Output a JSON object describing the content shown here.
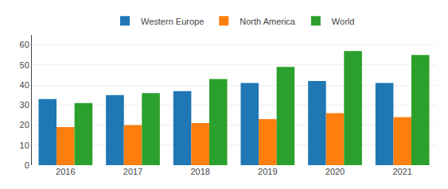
{
  "chart_data": {
    "type": "bar",
    "categories": [
      "2016",
      "2017",
      "2018",
      "2019",
      "2020",
      "2021"
    ],
    "series": [
      {
        "name": "Western Europe",
        "values": [
          33,
          35,
          37,
          41,
          42,
          41
        ]
      },
      {
        "name": "North America",
        "values": [
          19,
          20,
          21,
          23,
          26,
          24
        ]
      },
      {
        "name": "World",
        "values": [
          31,
          36,
          43,
          49,
          57,
          55
        ]
      }
    ],
    "ylim": [
      0,
      65
    ],
    "yticks": [
      0,
      10,
      20,
      30,
      40,
      50,
      60
    ],
    "grid": true,
    "legend": "top"
  }
}
